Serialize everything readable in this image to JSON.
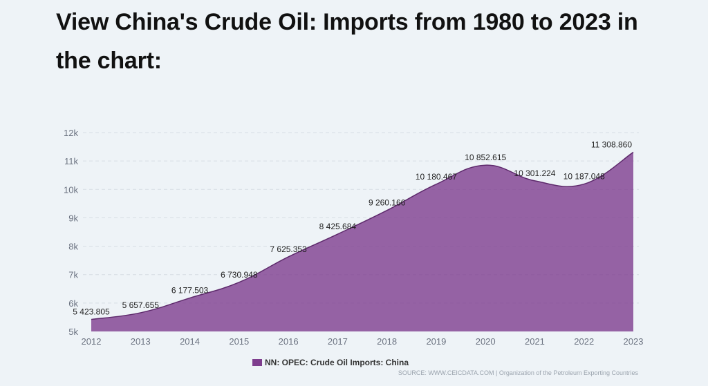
{
  "page": {
    "heading": "View China's Crude Oil: Imports from 1980 to 2023 in the chart:",
    "source": "SOURCE: WWW.CEICDATA.COM | Organization of the Petroleum Exporting Countries"
  },
  "colors": {
    "series": "#7e3d8e",
    "series_line": "#5e2a6c",
    "background": "#eef3f7"
  },
  "chart_data": {
    "type": "area",
    "title": "",
    "xlabel": "",
    "ylabel": "",
    "x": [
      2012,
      2013,
      2014,
      2015,
      2016,
      2017,
      2018,
      2019,
      2020,
      2021,
      2022,
      2023
    ],
    "x_tick_labels": [
      "2012",
      "2013",
      "2014",
      "2015",
      "2016",
      "2017",
      "2018",
      "2019",
      "2020",
      "2021",
      "2022",
      "2023"
    ],
    "y_ticks": [
      5000,
      6000,
      7000,
      8000,
      9000,
      10000,
      11000,
      12000
    ],
    "y_tick_labels": [
      "5k",
      "6k",
      "7k",
      "8k",
      "9k",
      "10k",
      "11k",
      "12k"
    ],
    "ylim": [
      5000,
      12000
    ],
    "grid": true,
    "legend_position": "bottom-center",
    "series": [
      {
        "name": "NN: OPEC: Crude Oil Imports: China",
        "values": [
          5423.805,
          5657.655,
          6177.503,
          6730.948,
          7625.353,
          8425.684,
          9260.166,
          10180.467,
          10852.615,
          10301.224,
          10187.048,
          11308.86
        ],
        "labels": [
          "5 423.805",
          "5 657.655",
          "6 177.503",
          "6 730.948",
          "7 625.353",
          "8 425.684",
          "9 260.166",
          "10 180.467",
          "10 852.615",
          "10 301.224",
          "10 187.048",
          "11 308.860"
        ]
      }
    ]
  }
}
